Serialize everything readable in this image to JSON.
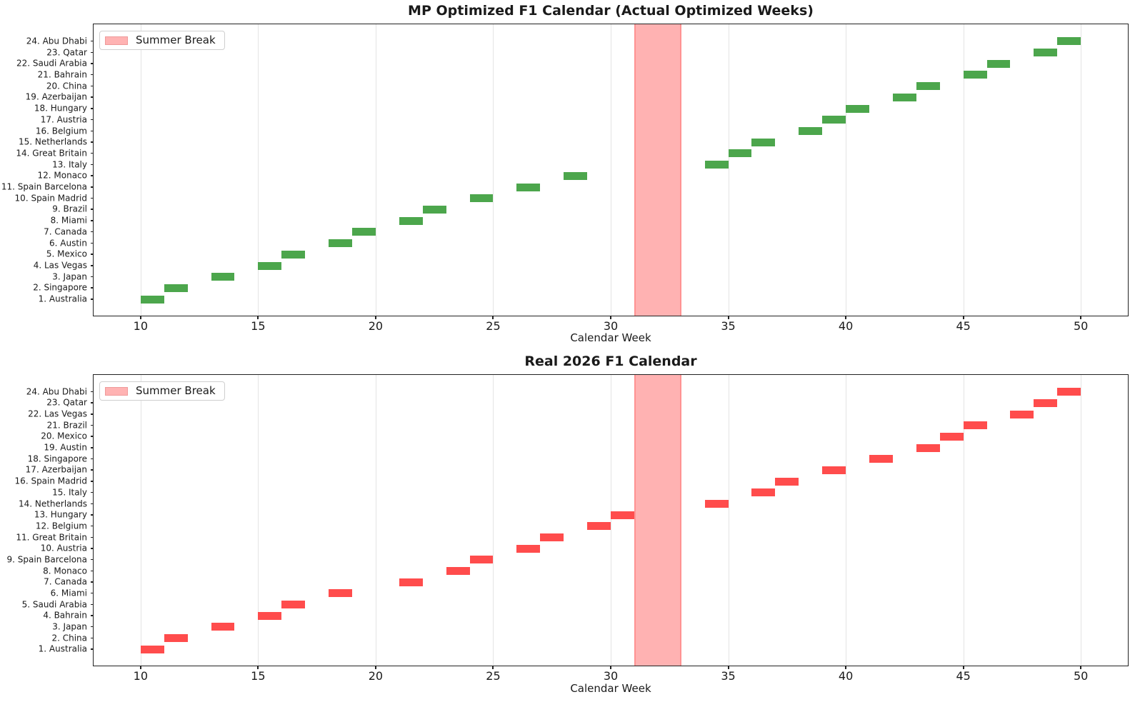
{
  "figure": {
    "background": "#ffffff",
    "text_color": "#1a1a1a",
    "grid_color": "#e4e4e4"
  },
  "chart_data": [
    {
      "type": "gantt",
      "title": "MP Optimized F1 Calendar (Actual Optimized Weeks)",
      "xlabel": "Calendar Week",
      "legend_label": "Summer Break",
      "legend_position": "upper left",
      "grid": true,
      "x_range": [
        8,
        52
      ],
      "x_ticks": [
        10,
        15,
        20,
        25,
        30,
        35,
        40,
        45,
        50
      ],
      "bar_color": "#4CA64C",
      "summer_break": {
        "start_week": 31,
        "end_week": 33,
        "fill": "rgba(255,0,0,0.30)"
      },
      "races": [
        {
          "label": "1. Australia",
          "start_week": 10,
          "end_week": 11
        },
        {
          "label": "2. Singapore",
          "start_week": 11,
          "end_week": 12
        },
        {
          "label": "3. Japan",
          "start_week": 13,
          "end_week": 14
        },
        {
          "label": "4. Las Vegas",
          "start_week": 15,
          "end_week": 16
        },
        {
          "label": "5. Mexico",
          "start_week": 16,
          "end_week": 17
        },
        {
          "label": "6. Austin",
          "start_week": 18,
          "end_week": 19
        },
        {
          "label": "7. Canada",
          "start_week": 19,
          "end_week": 20
        },
        {
          "label": "8. Miami",
          "start_week": 21,
          "end_week": 22
        },
        {
          "label": "9. Brazil",
          "start_week": 22,
          "end_week": 23
        },
        {
          "label": "10. Spain Madrid",
          "start_week": 24,
          "end_week": 25
        },
        {
          "label": "11. Spain Barcelona",
          "start_week": 26,
          "end_week": 27
        },
        {
          "label": "12. Monaco",
          "start_week": 28,
          "end_week": 29
        },
        {
          "label": "13. Italy",
          "start_week": 34,
          "end_week": 35
        },
        {
          "label": "14. Great Britain",
          "start_week": 35,
          "end_week": 36
        },
        {
          "label": "15. Netherlands",
          "start_week": 36,
          "end_week": 37
        },
        {
          "label": "16. Belgium",
          "start_week": 38,
          "end_week": 39
        },
        {
          "label": "17. Austria",
          "start_week": 39,
          "end_week": 40
        },
        {
          "label": "18. Hungary",
          "start_week": 40,
          "end_week": 41
        },
        {
          "label": "19. Azerbaijan",
          "start_week": 42,
          "end_week": 43
        },
        {
          "label": "20. China",
          "start_week": 43,
          "end_week": 44
        },
        {
          "label": "21. Bahrain",
          "start_week": 45,
          "end_week": 46
        },
        {
          "label": "22. Saudi Arabia",
          "start_week": 46,
          "end_week": 47
        },
        {
          "label": "23. Qatar",
          "start_week": 48,
          "end_week": 49
        },
        {
          "label": "24. Abu Dhabi",
          "start_week": 49,
          "end_week": 50
        }
      ]
    },
    {
      "type": "gantt",
      "title": "Real 2026 F1 Calendar",
      "xlabel": "Calendar Week",
      "legend_label": "Summer Break",
      "legend_position": "upper left",
      "grid": true,
      "x_range": [
        8,
        52
      ],
      "x_ticks": [
        10,
        15,
        20,
        25,
        30,
        35,
        40,
        45,
        50
      ],
      "bar_color": "#FF4C4C",
      "summer_break": {
        "start_week": 31,
        "end_week": 33,
        "fill": "rgba(255,0,0,0.30)"
      },
      "races": [
        {
          "label": "1. Australia",
          "start_week": 10,
          "end_week": 11
        },
        {
          "label": "2. China",
          "start_week": 11,
          "end_week": 12
        },
        {
          "label": "3. Japan",
          "start_week": 13,
          "end_week": 14
        },
        {
          "label": "4. Bahrain",
          "start_week": 15,
          "end_week": 16
        },
        {
          "label": "5. Saudi Arabia",
          "start_week": 16,
          "end_week": 17
        },
        {
          "label": "6. Miami",
          "start_week": 18,
          "end_week": 19
        },
        {
          "label": "7. Canada",
          "start_week": 21,
          "end_week": 22
        },
        {
          "label": "8. Monaco",
          "start_week": 23,
          "end_week": 24
        },
        {
          "label": "9. Spain Barcelona",
          "start_week": 24,
          "end_week": 25
        },
        {
          "label": "10. Austria",
          "start_week": 26,
          "end_week": 27
        },
        {
          "label": "11. Great Britain",
          "start_week": 27,
          "end_week": 28
        },
        {
          "label": "12. Belgium",
          "start_week": 29,
          "end_week": 30
        },
        {
          "label": "13. Hungary",
          "start_week": 30,
          "end_week": 31
        },
        {
          "label": "14. Netherlands",
          "start_week": 34,
          "end_week": 35
        },
        {
          "label": "15. Italy",
          "start_week": 36,
          "end_week": 37
        },
        {
          "label": "16. Spain Madrid",
          "start_week": 37,
          "end_week": 38
        },
        {
          "label": "17. Azerbaijan",
          "start_week": 39,
          "end_week": 40
        },
        {
          "label": "18. Singapore",
          "start_week": 41,
          "end_week": 42
        },
        {
          "label": "19. Austin",
          "start_week": 43,
          "end_week": 44
        },
        {
          "label": "20. Mexico",
          "start_week": 44,
          "end_week": 45
        },
        {
          "label": "21. Brazil",
          "start_week": 45,
          "end_week": 46
        },
        {
          "label": "22. Las Vegas",
          "start_week": 47,
          "end_week": 48
        },
        {
          "label": "23. Qatar",
          "start_week": 48,
          "end_week": 49
        },
        {
          "label": "24. Abu Dhabi",
          "start_week": 49,
          "end_week": 50
        }
      ]
    }
  ]
}
